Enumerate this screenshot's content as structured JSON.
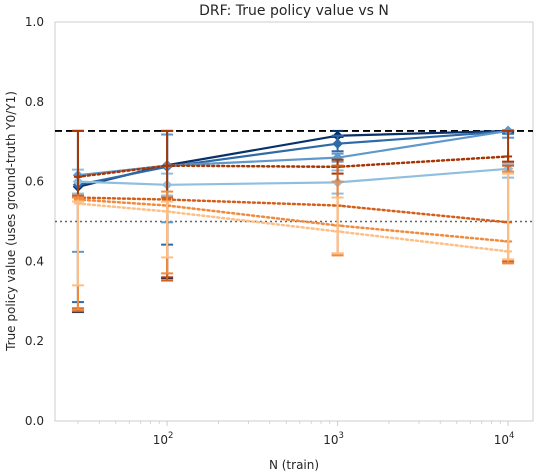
{
  "chart_data": {
    "type": "line",
    "title": "DRF: True policy value vs N",
    "xlabel": "N (train)",
    "ylabel": "True policy value (uses ground-truth Y0/Y1)",
    "x_scale": "log",
    "xlim": [
      22,
      14000
    ],
    "ylim": [
      0.0,
      1.0
    ],
    "x": [
      30,
      100,
      1000,
      10000
    ],
    "x_ticks": [
      {
        "value": 100,
        "label_base": "10",
        "label_exp": "2"
      },
      {
        "value": 1000,
        "label_base": "10",
        "label_exp": "3"
      },
      {
        "value": 10000,
        "label_base": "10",
        "label_exp": "4"
      }
    ],
    "y_ticks": [
      {
        "value": 0.0,
        "label": "0.0"
      },
      {
        "value": 0.2,
        "label": "0.2"
      },
      {
        "value": 0.4,
        "label": "0.4"
      },
      {
        "value": 0.6,
        "label": "0.6"
      },
      {
        "value": 0.8,
        "label": "0.8"
      },
      {
        "value": 1.0,
        "label": "1.0"
      }
    ],
    "grid": false,
    "reference_lines": [
      {
        "y": 0.727,
        "color": "#000000",
        "style": "dashed"
      },
      {
        "y": 0.5,
        "color": "#666666",
        "style": "dotted"
      }
    ],
    "series": [
      {
        "color": "#08306b",
        "style": "solid",
        "marker": "D",
        "values": [
          0.587,
          0.641,
          0.715,
          0.727
        ],
        "err_low": [
          0.273,
          0.358,
          0.712,
          0.724
        ],
        "err_high": [
          0.727,
          0.727,
          0.727,
          0.727
        ]
      },
      {
        "color": "#2e6aa8",
        "style": "solid",
        "marker": "D",
        "values": [
          0.592,
          0.637,
          0.695,
          0.726
        ],
        "err_low": [
          0.298,
          0.442,
          0.676,
          0.72
        ],
        "err_high": [
          0.727,
          0.727,
          0.715,
          0.727
        ]
      },
      {
        "color": "#5f98cb",
        "style": "solid",
        "marker": "D",
        "values": [
          0.616,
          0.64,
          0.66,
          0.727
        ],
        "err_low": [
          0.424,
          0.498,
          0.65,
          0.71
        ],
        "err_high": [
          0.727,
          0.718,
          0.67,
          0.729
        ]
      },
      {
        "color": "#8fbfe0",
        "style": "solid",
        "marker": "D",
        "values": [
          0.6,
          0.592,
          0.598,
          0.632
        ],
        "err_low": [
          0.57,
          0.565,
          0.57,
          0.61
        ],
        "err_high": [
          0.63,
          0.62,
          0.628,
          0.645
        ]
      },
      {
        "color": "#a63603",
        "style": "dotted",
        "marker": "+",
        "values": [
          0.612,
          0.64,
          0.637,
          0.663
        ],
        "err_low": [
          0.282,
          0.36,
          0.62,
          0.65
        ],
        "err_high": [
          0.727,
          0.727,
          0.655,
          0.727
        ]
      },
      {
        "color": "#d45f1a",
        "style": "dotted",
        "marker": "+",
        "values": [
          0.56,
          0.555,
          0.54,
          0.498
        ],
        "err_low": [
          0.275,
          0.352,
          0.42,
          0.4
        ],
        "err_high": [
          0.565,
          0.56,
          0.64,
          0.64
        ]
      },
      {
        "color": "#f08b3d",
        "style": "dotted",
        "marker": "+",
        "values": [
          0.555,
          0.54,
          0.49,
          0.45
        ],
        "err_low": [
          0.28,
          0.37,
          0.415,
          0.395
        ],
        "err_high": [
          0.56,
          0.575,
          0.6,
          0.625
        ]
      },
      {
        "color": "#fdbf86",
        "style": "dotted",
        "marker": "+",
        "values": [
          0.545,
          0.525,
          0.475,
          0.425
        ],
        "err_low": [
          0.34,
          0.41,
          0.42,
          0.405
        ],
        "err_high": [
          0.55,
          0.55,
          0.56,
          0.62
        ]
      }
    ]
  }
}
